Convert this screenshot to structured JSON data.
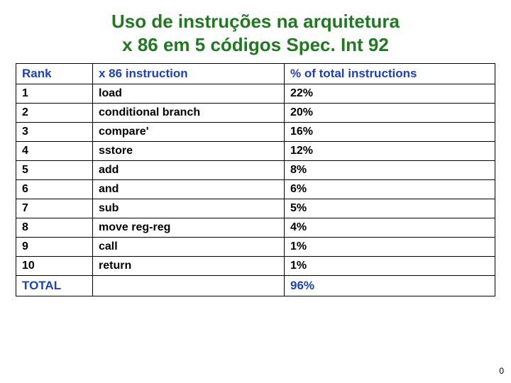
{
  "title": {
    "line1": "Uso de instruções na arquitetura",
    "line2": "x 86 em 5 códigos Spec. Int 92",
    "color": "#1f7a1f",
    "fontsize": 26
  },
  "table": {
    "header_color": "#1a3fbf",
    "body_color": "#000000",
    "header_fontsize": 17,
    "body_fontsize": 16,
    "columns": [
      "Rank",
      "x 86 instruction",
      "% of total instructions"
    ],
    "rows": [
      [
        "1",
        "load",
        "22%"
      ],
      [
        "2",
        "conditional branch",
        "20%"
      ],
      [
        "3",
        "compare'",
        "16%"
      ],
      [
        "4",
        "sstore",
        "12%"
      ],
      [
        "5",
        "add",
        "8%"
      ],
      [
        "6",
        "and",
        "6%"
      ],
      [
        "7",
        "sub",
        "5%"
      ],
      [
        "8",
        "move reg-reg",
        "4%"
      ],
      [
        "9",
        "call",
        "1%"
      ],
      [
        "10",
        "return",
        "1%"
      ]
    ],
    "total_row": [
      "TOTAL",
      "",
      "96%"
    ]
  },
  "page_number": {
    "value": "0",
    "fontsize": 12,
    "color": "#000000"
  }
}
